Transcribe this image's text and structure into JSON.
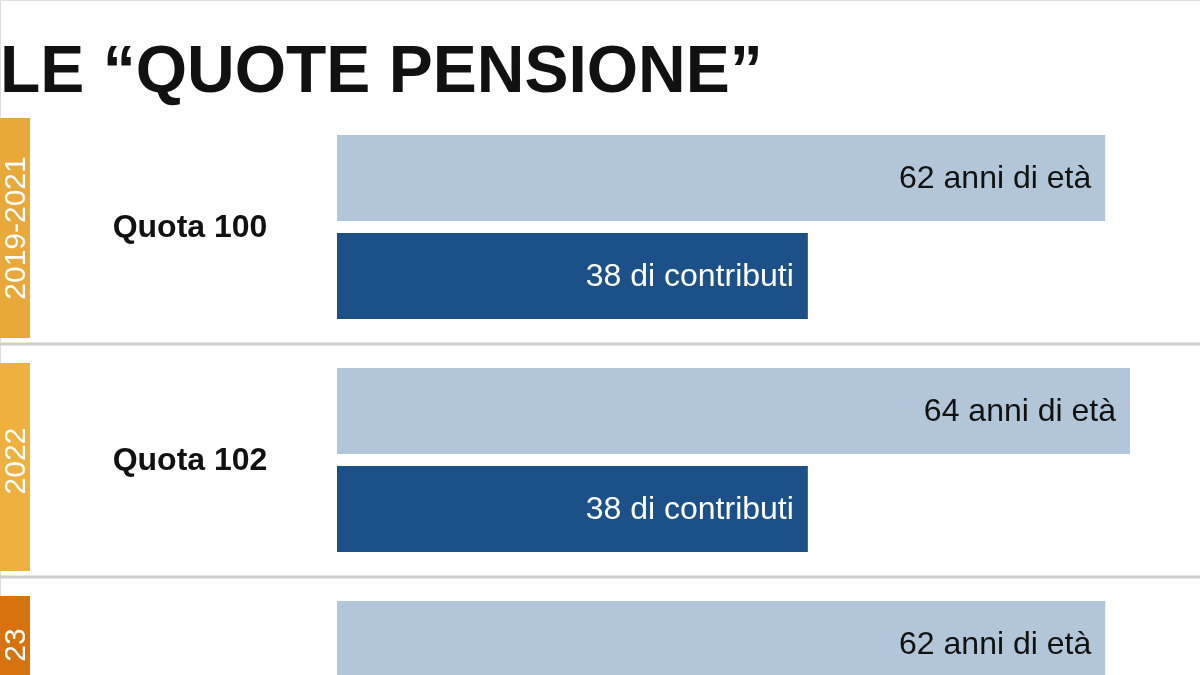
{
  "chart_data": {
    "type": "bar",
    "orientation": "horizontal",
    "title": "LE “QUOTE PENSIONE”",
    "categories": [
      "Quota 100",
      "Quota 102",
      null
    ],
    "annotations": [
      "2019-2021",
      "2022",
      "23"
    ],
    "series": [
      {
        "color": "#b3c6d9",
        "values": [
          62,
          64,
          62
        ],
        "value_labels": [
          "62 anni di età",
          "64 anni di età",
          "62 anni di età"
        ]
      },
      {
        "color": "#1b5088",
        "values": [
          38,
          38,
          null
        ],
        "value_labels": [
          "38 di contributi",
          "38 di contributi",
          null
        ]
      }
    ]
  }
}
